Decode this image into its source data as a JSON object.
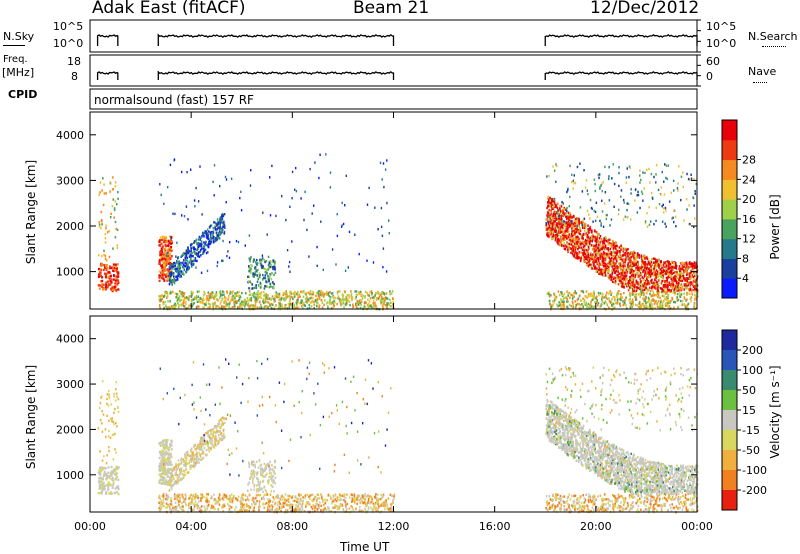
{
  "header": {
    "station": "Adak East (fitACF)",
    "beam": "Beam 21",
    "date": "12/Dec/2012"
  },
  "left_labels": {
    "nsky": "N.Sky",
    "nsky_tick_hi": "10^5",
    "nsky_tick_lo": "10^0",
    "freq": "Freq.",
    "freq_unit": "[MHz]",
    "freq_tick_hi": "18",
    "freq_tick_lo": "8",
    "cpid": "CPID"
  },
  "right_labels": {
    "nsearch": "N.Search",
    "nsearch_tick_hi": "10^5",
    "nsearch_tick_lo": "10^0",
    "nave": "Nave",
    "nave_tick_hi": "60",
    "nave_tick_lo": "0"
  },
  "cpid_text": "normalsound (fast) 157 RF",
  "chart_data": [
    {
      "type": "heatmap",
      "parameter": "power",
      "ylabel": "Slant Range [km]",
      "yticks": [
        1000,
        2000,
        3000,
        4000
      ],
      "ylim": [
        180,
        4500
      ],
      "xlim": [
        0,
        24
      ],
      "xticks": [
        "00:00",
        "04:00",
        "08:00",
        "12:00",
        "16:00",
        "20:00",
        "00:00"
      ],
      "xlabel": "Time UT",
      "colorbar": {
        "label": "Power [dB]",
        "ticks": [
          4,
          8,
          12,
          16,
          20,
          24,
          28
        ],
        "colors": [
          "#0a1cff",
          "#1b3f9e",
          "#247a8a",
          "#4aa35c",
          "#a0d04a",
          "#f0c030",
          "#f58a20",
          "#ee3a10",
          "#e8000a"
        ]
      },
      "data_segments_ut_hours": [
        [
          0.3,
          1.1
        ],
        [
          2.7,
          12.0
        ],
        [
          18.0,
          24.0
        ]
      ]
    },
    {
      "type": "heatmap",
      "parameter": "velocity",
      "ylabel": "Slant Range [km]",
      "yticks": [
        1000,
        2000,
        3000,
        4000
      ],
      "ylim": [
        180,
        4500
      ],
      "xlim": [
        0,
        24
      ],
      "xticks": [
        "00:00",
        "04:00",
        "08:00",
        "12:00",
        "16:00",
        "20:00",
        "00:00"
      ],
      "xlabel": "Time UT",
      "colorbar": {
        "label": "Velocity [m s⁻¹]",
        "ticks": [
          200,
          100,
          50,
          15,
          -15,
          -50,
          -100,
          -200
        ],
        "colors": [
          "#1c2a9e",
          "#2a55b8",
          "#3a8a70",
          "#6cc040",
          "#c8c8c0",
          "#d8d860",
          "#f0b040",
          "#f08020",
          "#e82010"
        ]
      }
    }
  ]
}
